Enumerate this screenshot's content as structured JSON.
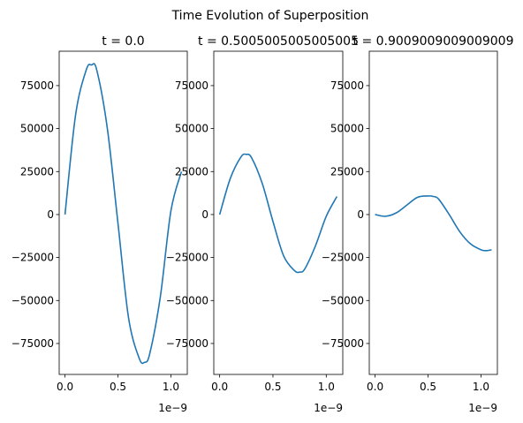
{
  "figure": {
    "suptitle": "Time Evolution of Superposition",
    "line_color": "#1f77b4"
  },
  "chart_data": [
    {
      "type": "line",
      "title": "t = 0.0",
      "x_offset_label": "1e−9",
      "xlim": [
        -0.055,
        1.155
      ],
      "ylim": [
        -93000,
        95000
      ],
      "xticks": [
        0.0,
        0.5,
        1.0
      ],
      "xtick_labels": [
        "0.0",
        "0.5",
        "1.0"
      ],
      "yticks": [
        75000,
        50000,
        25000,
        0,
        -25000,
        -50000,
        -75000
      ],
      "ytick_labels": [
        "75000",
        "50000",
        "25000",
        "0",
        "−25000",
        "−50000",
        "−75000"
      ],
      "series": [
        {
          "x": [
            0.0,
            0.1,
            0.2,
            0.25,
            0.3,
            0.4,
            0.5,
            0.6,
            0.7,
            0.75,
            0.8,
            0.9,
            1.0,
            1.1
          ],
          "y": [
            0,
            58000,
            84000,
            87000,
            84000,
            50000,
            -5000,
            -60000,
            -83500,
            -86000,
            -81000,
            -48000,
            2000,
            25000
          ]
        }
      ]
    },
    {
      "type": "line",
      "title": "t = 0.5005005005005005",
      "x_offset_label": "1e−9",
      "xlim": [
        -0.055,
        1.155
      ],
      "ylim": [
        -93000,
        95000
      ],
      "xticks": [
        0.0,
        0.5,
        1.0
      ],
      "xtick_labels": [
        "0.0",
        "0.5",
        "1.0"
      ],
      "yticks": [
        75000,
        50000,
        25000,
        0,
        -25000,
        -50000,
        -75000
      ],
      "ytick_labels": [
        "75000",
        "50000",
        "25000",
        "0",
        "−25000",
        "−50000",
        "−75000"
      ],
      "series": [
        {
          "x": [
            0.0,
            0.1,
            0.2,
            0.25,
            0.3,
            0.4,
            0.5,
            0.6,
            0.7,
            0.75,
            0.8,
            0.9,
            1.0,
            1.1
          ],
          "y": [
            0,
            21000,
            33500,
            35000,
            33000,
            18000,
            -4000,
            -24000,
            -32500,
            -33500,
            -31500,
            -18000,
            -1000,
            10500
          ]
        }
      ]
    },
    {
      "type": "line",
      "title": "t = 0.9009009009009009",
      "x_offset_label": "1e−9",
      "xlim": [
        -0.055,
        1.155
      ],
      "ylim": [
        -93000,
        95000
      ],
      "xticks": [
        0.0,
        0.5,
        1.0
      ],
      "xtick_labels": [
        "0.0",
        "0.5",
        "1.0"
      ],
      "yticks": [
        75000,
        50000,
        25000,
        0,
        -25000,
        -50000,
        -75000
      ],
      "ytick_labels": [
        "75000",
        "50000",
        "25000",
        "0",
        "−25000",
        "−50000",
        "−75000"
      ],
      "series": [
        {
          "x": [
            0.0,
            0.1,
            0.2,
            0.3,
            0.4,
            0.5,
            0.55,
            0.6,
            0.7,
            0.8,
            0.9,
            1.0,
            1.05,
            1.1
          ],
          "y": [
            0,
            -1000,
            1000,
            5500,
            10000,
            10800,
            10500,
            9000,
            0,
            -10000,
            -17000,
            -20500,
            -21000,
            -20500
          ]
        }
      ]
    }
  ]
}
